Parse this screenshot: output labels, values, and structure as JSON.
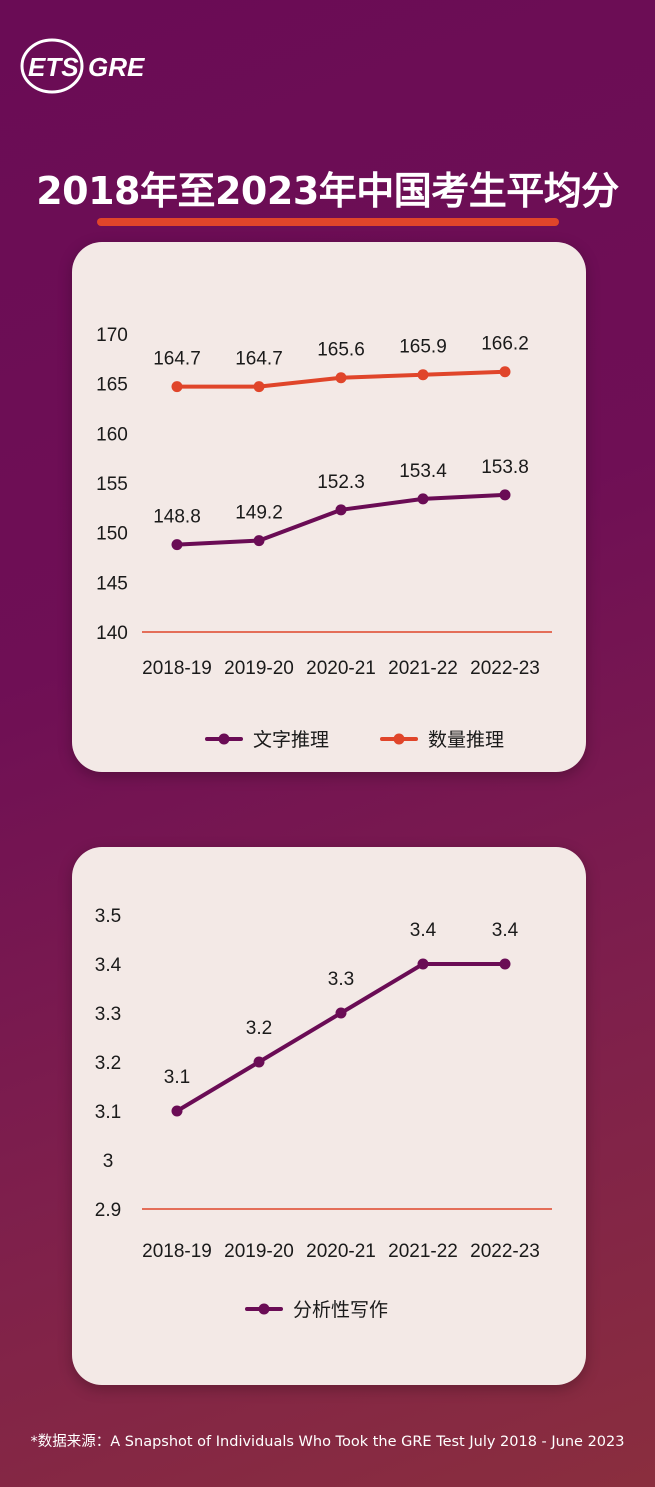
{
  "logo": {
    "ets": "ETS",
    "gre": "GRE"
  },
  "header": {
    "title": "2018年至2023年中国考生平均分"
  },
  "colors": {
    "verbal": "#6a0c55",
    "quant": "#e0452a",
    "baseline": "#e0452a",
    "card": "#f3e9e6"
  },
  "chart_data": [
    {
      "type": "line",
      "categories": [
        "2018-19",
        "2019-20",
        "2020-21",
        "2021-22",
        "2022-23"
      ],
      "series": [
        {
          "name": "文字推理",
          "values": [
            148.8,
            149.2,
            152.3,
            153.4,
            153.8
          ],
          "labels": [
            "148.8",
            "149.2",
            "152.3",
            "153.4",
            "153.8"
          ],
          "color": "#6a0c55"
        },
        {
          "name": "数量推理",
          "values": [
            164.7,
            164.7,
            165.6,
            165.9,
            166.2
          ],
          "labels": [
            "164.7",
            "164.7",
            "165.6",
            "165.9",
            "166.2"
          ],
          "color": "#e0452a"
        }
      ],
      "yticks": [
        "170",
        "165",
        "160",
        "155",
        "150",
        "145",
        "140"
      ],
      "ylim": [
        140,
        170
      ],
      "grid": false,
      "legend": "bottom"
    },
    {
      "type": "line",
      "categories": [
        "2018-19",
        "2019-20",
        "2020-21",
        "2021-22",
        "2022-23"
      ],
      "series": [
        {
          "name": "分析性写作",
          "values": [
            3.1,
            3.2,
            3.3,
            3.4,
            3.4
          ],
          "labels": [
            "3.1",
            "3.2",
            "3.3",
            "3.4",
            "3.4"
          ],
          "color": "#6a0c55"
        }
      ],
      "yticks": [
        "3.5",
        "3.4",
        "3.3",
        "3.2",
        "3.1",
        "3",
        "2.9"
      ],
      "ylim": [
        2.9,
        3.5
      ],
      "grid": false,
      "legend": "bottom"
    }
  ],
  "footnote": "*数据来源：A Snapshot of Individuals Who Took the GRE Test July 2018 - June 2023"
}
